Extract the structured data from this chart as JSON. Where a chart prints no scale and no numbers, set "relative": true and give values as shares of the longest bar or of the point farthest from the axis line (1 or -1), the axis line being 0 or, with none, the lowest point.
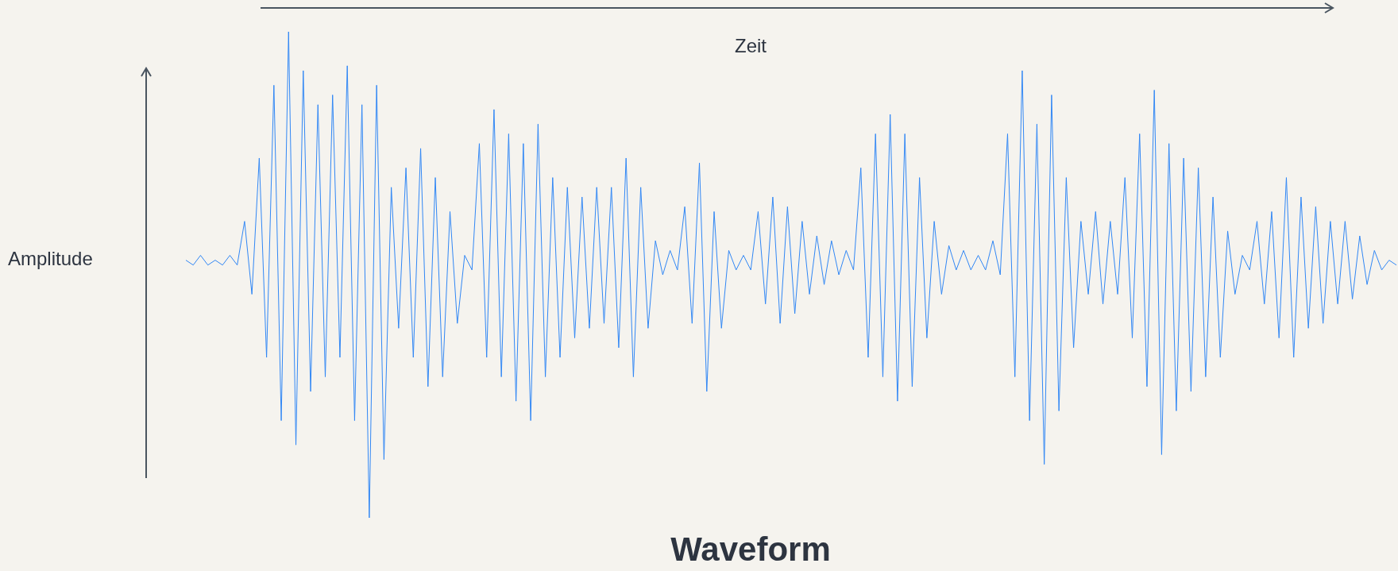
{
  "chart_data": {
    "type": "line",
    "title": "Waveform",
    "xlabel": "Zeit",
    "ylabel": "Amplitude",
    "relative": true,
    "categories": [
      null,
      null,
      null,
      null,
      null,
      null,
      null,
      null,
      null,
      null,
      null,
      null,
      null,
      null,
      null,
      null,
      null,
      null,
      null,
      null,
      null,
      null,
      null,
      null,
      null,
      null,
      null,
      null,
      null,
      null,
      null,
      null,
      null,
      null,
      null,
      null,
      null,
      null,
      null,
      null,
      null,
      null,
      null,
      null,
      null,
      null,
      null,
      null,
      null,
      null,
      null,
      null,
      null,
      null,
      null,
      null,
      null,
      null,
      null,
      null,
      null,
      null,
      null,
      null,
      null,
      null,
      null,
      null,
      null,
      null,
      null,
      null,
      null,
      null,
      null,
      null,
      null,
      null,
      null,
      null,
      null,
      null,
      null,
      null,
      null,
      null,
      null,
      null,
      null,
      null,
      null,
      null,
      null,
      null,
      null,
      null,
      null,
      null,
      null,
      null,
      null,
      null,
      null,
      null,
      null,
      null,
      null,
      null,
      null,
      null,
      null,
      null,
      null,
      null,
      null,
      null,
      null,
      null,
      null,
      null,
      null,
      null,
      null,
      null,
      null,
      null,
      null,
      null,
      null,
      null,
      null,
      null,
      null,
      null,
      null,
      null,
      null,
      null,
      null,
      null,
      null,
      null,
      null,
      null,
      null,
      null,
      null,
      null,
      null,
      null,
      null,
      null,
      null,
      null,
      null,
      null,
      null,
      null,
      null,
      null,
      null,
      null,
      null,
      null,
      null,
      null
    ],
    "series": [
      {
        "color": "#3187f5",
        "values": [
          0.53,
          0.52,
          0.54,
          0.52,
          0.53,
          0.52,
          0.54,
          0.52,
          0.61,
          0.46,
          0.74,
          0.33,
          0.89,
          0.2,
          1,
          0.15,
          0.92,
          0.26,
          0.85,
          0.29,
          0.87,
          0.33,
          0.93,
          0.2,
          0.85,
          0,
          0.89,
          0.12,
          0.68,
          0.39,
          0.72,
          0.33,
          0.76,
          0.27,
          0.7,
          0.29,
          0.63,
          0.4,
          0.54,
          0.51,
          0.77,
          0.33,
          0.84,
          0.29,
          0.79,
          0.24,
          0.77,
          0.2,
          0.81,
          0.29,
          0.7,
          0.33,
          0.68,
          0.37,
          0.66,
          0.39,
          0.68,
          0.4,
          0.68,
          0.35,
          0.74,
          0.29,
          0.68,
          0.39,
          0.57,
          0.5,
          0.55,
          0.51,
          0.64,
          0.4,
          0.73,
          0.26,
          0.63,
          0.39,
          0.55,
          0.51,
          0.54,
          0.51,
          0.63,
          0.44,
          0.66,
          0.4,
          0.64,
          0.42,
          0.61,
          0.46,
          0.58,
          0.48,
          0.57,
          0.5,
          0.55,
          0.51,
          0.72,
          0.33,
          0.79,
          0.29,
          0.83,
          0.24,
          0.79,
          0.27,
          0.7,
          0.37,
          0.61,
          0.46,
          0.56,
          0.51,
          0.55,
          0.51,
          0.54,
          0.51,
          0.57,
          0.5,
          0.79,
          0.29,
          0.92,
          0.2,
          0.81,
          0.11,
          0.87,
          0.22,
          0.7,
          0.35,
          0.61,
          0.46,
          0.63,
          0.44,
          0.61,
          0.46,
          0.7,
          0.37,
          0.79,
          0.27,
          0.88,
          0.13,
          0.77,
          0.22,
          0.74,
          0.26,
          0.72,
          0.29,
          0.66,
          0.33,
          0.59,
          0.46,
          0.54,
          0.51,
          0.61,
          0.44,
          0.63,
          0.37,
          0.7,
          0.33,
          0.66,
          0.39,
          0.64,
          0.4,
          0.61,
          0.44,
          0.61,
          0.45,
          0.58,
          0.48,
          0.55,
          0.51,
          0.53,
          0.52
        ]
      }
    ]
  }
}
